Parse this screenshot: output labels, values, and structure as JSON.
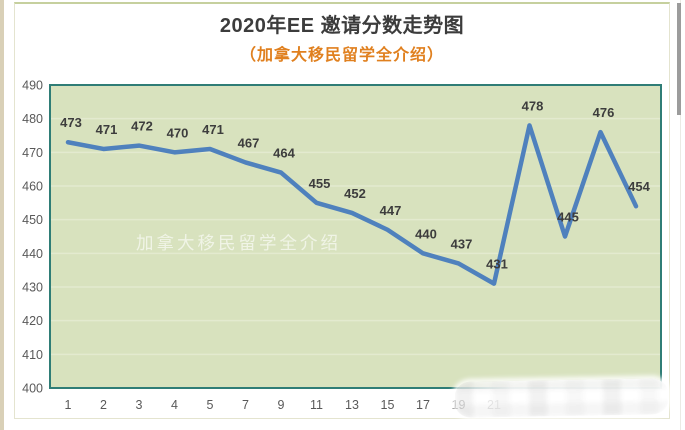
{
  "header": {
    "title": "2020年EE 邀请分数走势图",
    "subtitle": "（加拿大移民留学全介绍）"
  },
  "watermark_text": "加拿大移民留学全介绍",
  "chart_data": {
    "type": "line",
    "title": "2020年EE 邀请分数走势图",
    "subtitle": "（加拿大移民留学全介绍）",
    "x_tick_labels": [
      "1",
      "2",
      "3",
      "4",
      "5",
      "7",
      "9",
      "11",
      "13",
      "15",
      "17",
      "19",
      "21"
    ],
    "values": [
      473,
      471,
      472,
      470,
      471,
      467,
      464,
      455,
      452,
      447,
      440,
      437,
      431,
      478,
      445,
      476,
      454
    ],
    "ylim": [
      400,
      490
    ],
    "yticks": [
      400,
      410,
      420,
      430,
      440,
      450,
      460,
      470,
      480,
      490
    ],
    "grid": true,
    "legend": false,
    "data_labels_shown": true,
    "colors": {
      "line": "#4f81bd",
      "plot_bg": "#d8e2be",
      "plot_border": "#2f7d76",
      "gridline": "#e3eacf",
      "data_label": "#3d3d3d",
      "axis_tick": "#595959",
      "title": "#3c3c3c",
      "subtitle": "#e0801f"
    }
  }
}
